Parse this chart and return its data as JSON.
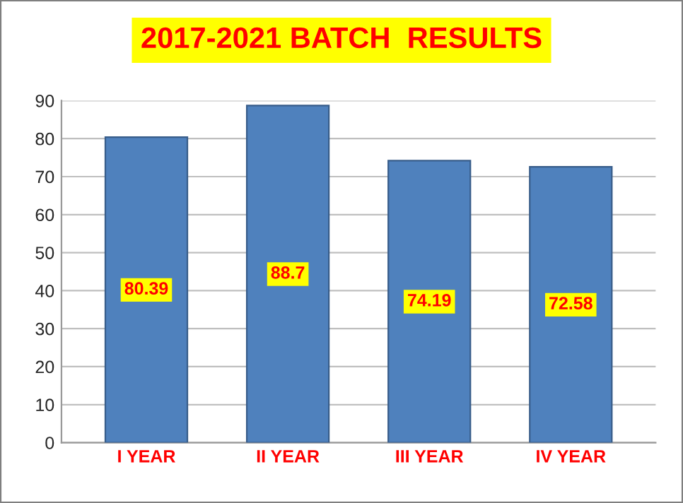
{
  "chart_data": {
    "type": "bar",
    "title": "2017-2021 BATCH  RESULTS",
    "categories": [
      "I YEAR",
      "II YEAR",
      "III YEAR",
      "IV YEAR"
    ],
    "values": [
      80.39,
      88.7,
      74.19,
      72.58
    ],
    "color": "#4f81bd",
    "ylim": [
      0,
      90
    ],
    "yticks": [
      0,
      10,
      20,
      30,
      40,
      50,
      60,
      70,
      80,
      90
    ],
    "grid": "y",
    "data_labels": true,
    "legend": false
  }
}
